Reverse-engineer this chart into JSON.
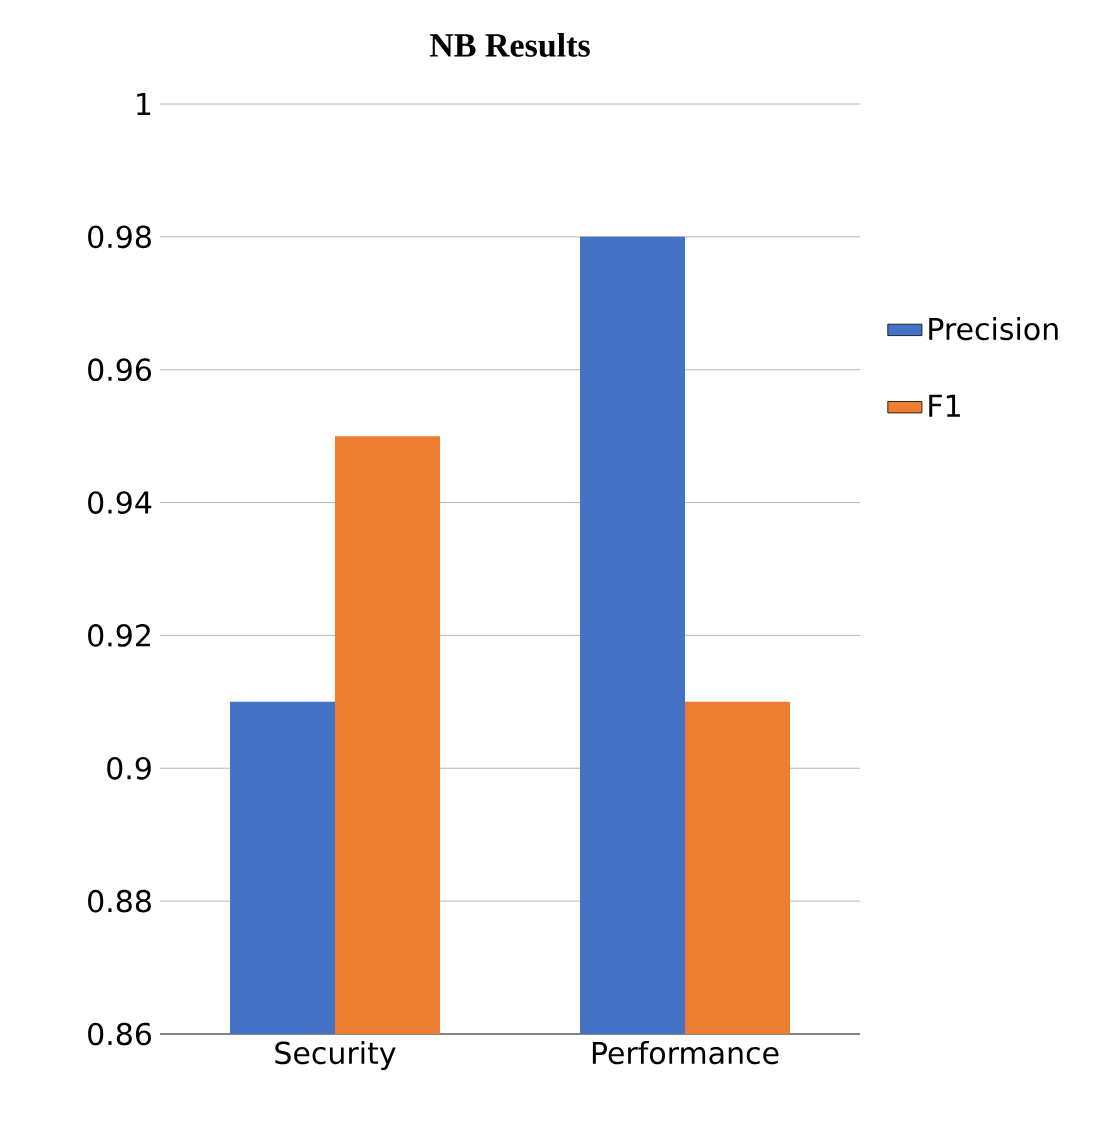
{
  "chart_data": {
    "type": "bar",
    "title": "NB  Results",
    "categories": [
      "Security",
      "Performance"
    ],
    "series": [
      {
        "name": "Precision",
        "color": "#4472c4",
        "values": [
          0.91,
          0.98
        ]
      },
      {
        "name": "F1",
        "color": "#ed7d31",
        "values": [
          0.95,
          0.91
        ]
      }
    ],
    "ylim": [
      0.86,
      1
    ],
    "yticks": [
      0.86,
      0.88,
      0.9,
      0.92,
      0.94,
      0.96,
      0.98,
      1
    ],
    "grid": "y",
    "legend": "right"
  }
}
